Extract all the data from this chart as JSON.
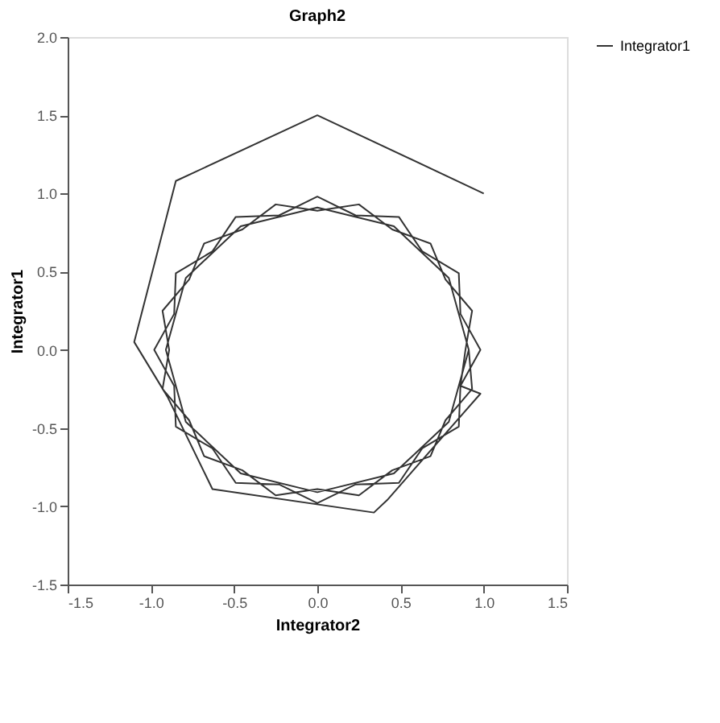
{
  "chart_data": {
    "type": "line",
    "title": "Graph2",
    "xlabel": "Integrator2",
    "ylabel": "Integrator1",
    "xlim": [
      -1.5,
      1.5
    ],
    "ylim": [
      -1.5,
      2.0
    ],
    "xticks": [
      {
        "value": -1.5,
        "label": "-1.5"
      },
      {
        "value": -1.0,
        "label": "-1.0"
      },
      {
        "value": -0.5,
        "label": "-0.5"
      },
      {
        "value": 0,
        "label": "0.0"
      },
      {
        "value": 0.5,
        "label": "0.5"
      },
      {
        "value": 1.0,
        "label": "1.0"
      },
      {
        "value": 1.5,
        "label": "1.5"
      }
    ],
    "yticks": [
      {
        "value": -1.5,
        "label": "-1.5"
      },
      {
        "value": -1.0,
        "label": "-1.0"
      },
      {
        "value": -0.5,
        "label": "-0.5"
      },
      {
        "value": 0,
        "label": "0.0"
      },
      {
        "value": 0.5,
        "label": "0.5"
      },
      {
        "value": 1.0,
        "label": "1.0"
      },
      {
        "value": 1.5,
        "label": "1.5"
      },
      {
        "value": 2.0,
        "label": "2.0"
      }
    ],
    "grid": false,
    "legend": "right",
    "marker": "none",
    "line_style": "solid",
    "series": [
      {
        "name": "Integrator1",
        "color": "#333333",
        "x": [
          1.0,
          0.0,
          -0.85,
          -1.1,
          -0.9,
          -0.63,
          0.34,
          0.42,
          0.98,
          0.86,
          0.98,
          0.86,
          0.85,
          0.63,
          0.49,
          0.23,
          0.0,
          -0.23,
          -0.49,
          -0.63,
          -0.85,
          -0.86,
          -0.98,
          -0.86,
          -0.85,
          -0.63,
          -0.49,
          -0.23,
          0.0,
          0.23,
          0.49,
          0.63,
          0.85,
          0.86,
          0.89,
          0.93,
          0.77,
          0.68,
          0.45,
          0.25,
          0.0,
          -0.25,
          -0.45,
          -0.68,
          -0.77,
          -0.93,
          -0.89,
          -0.93,
          -0.77,
          -0.68,
          -0.45,
          -0.25,
          0.0,
          0.25,
          0.45,
          0.68,
          0.77,
          0.93,
          0.91,
          0.79,
          0.46,
          0.0,
          -0.46,
          -0.79,
          -0.91,
          -0.79,
          -0.46,
          0.0,
          0.46,
          0.79,
          0.91
        ],
        "values": [
          1.0,
          1.5,
          1.08,
          0.05,
          -0.3,
          -0.89,
          -1.04,
          -0.96,
          -0.28,
          -0.23,
          0.0,
          0.23,
          0.49,
          0.63,
          0.85,
          0.86,
          0.98,
          0.86,
          0.85,
          0.63,
          0.49,
          0.23,
          0.0,
          -0.23,
          -0.49,
          -0.63,
          -0.85,
          -0.86,
          -0.98,
          -0.86,
          -0.85,
          -0.63,
          -0.49,
          -0.23,
          0.0,
          0.25,
          0.45,
          0.68,
          0.77,
          0.93,
          0.89,
          0.93,
          0.77,
          0.68,
          0.45,
          0.25,
          0.0,
          -0.25,
          -0.45,
          -0.68,
          -0.77,
          -0.93,
          -0.89,
          -0.93,
          -0.77,
          -0.68,
          -0.45,
          -0.25,
          0.0,
          0.46,
          0.79,
          0.91,
          0.79,
          0.46,
          0.0,
          -0.46,
          -0.79,
          -0.91,
          -0.79,
          -0.46,
          0.0
        ]
      }
    ]
  }
}
